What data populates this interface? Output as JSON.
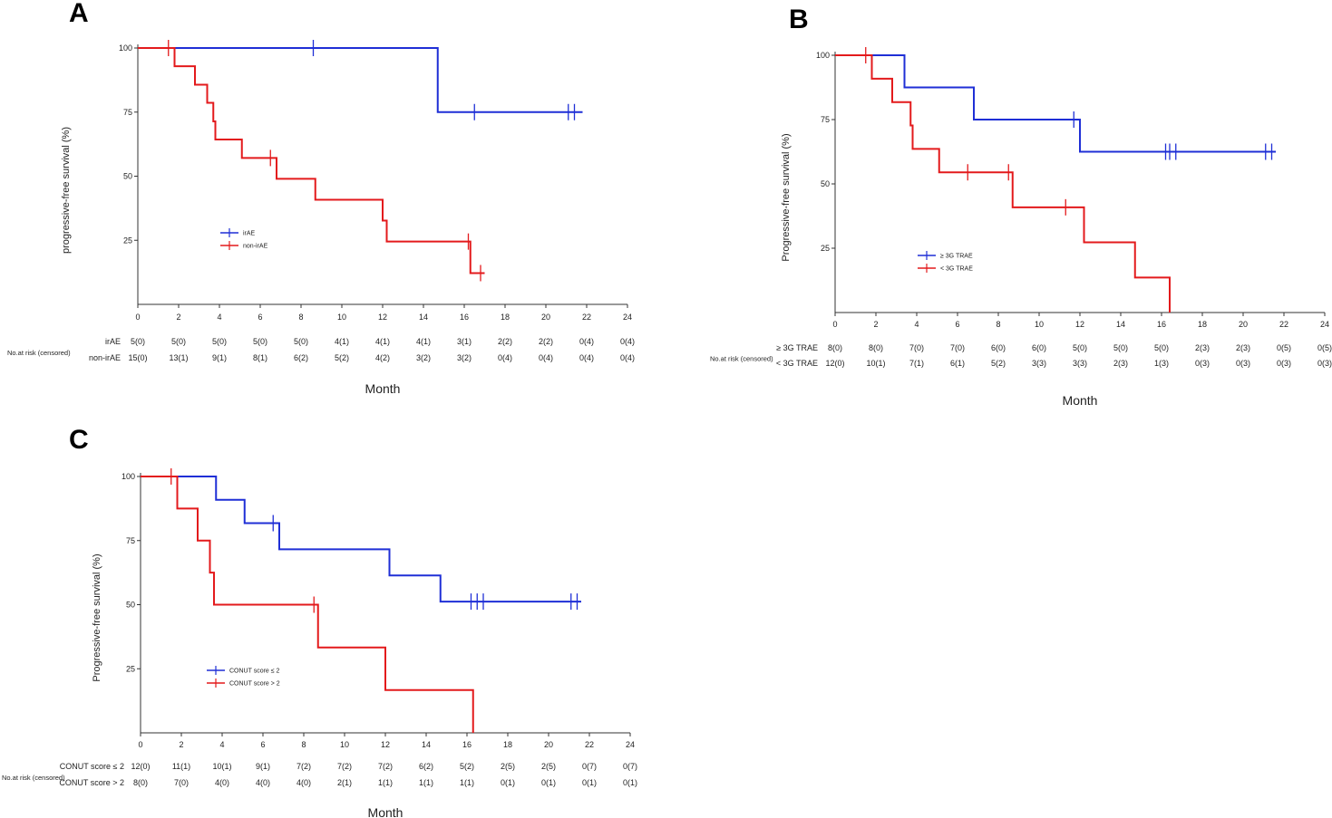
{
  "chart_data": [
    {
      "type": "line",
      "subtype": "kaplan-meier",
      "panel_label": "A",
      "xlabel": "Month",
      "ylabel": "progressive-free survival (%)",
      "xlim": [
        0,
        24
      ],
      "ylim": [
        0,
        100
      ],
      "x_ticks": [
        0,
        2,
        4,
        6,
        8,
        10,
        12,
        14,
        16,
        18,
        20,
        22,
        24
      ],
      "y_ticks": [
        25,
        50,
        75,
        100
      ],
      "series": [
        {
          "name": "irAE",
          "color": "#1f2fd6",
          "steps": [
            [
              0,
              100
            ],
            [
              14.7,
              75
            ],
            [
              21.8,
              75
            ]
          ],
          "censors": [
            [
              8.6,
              100
            ],
            [
              16.5,
              75
            ],
            [
              21.1,
              75
            ],
            [
              21.4,
              75
            ]
          ]
        },
        {
          "name": "non-irAE",
          "color": "#e31a1c",
          "steps": [
            [
              0,
              100
            ],
            [
              1.8,
              92.9
            ],
            [
              2.8,
              85.7
            ],
            [
              3.4,
              78.6
            ],
            [
              3.7,
              71.4
            ],
            [
              3.8,
              64.3
            ],
            [
              5.1,
              57.1
            ],
            [
              6.8,
              49
            ],
            [
              8.7,
              40.8
            ],
            [
              12.0,
              32.7
            ],
            [
              12.2,
              24.5
            ],
            [
              16.3,
              12.2
            ],
            [
              17.0,
              12.2
            ]
          ],
          "censors": [
            [
              1.5,
              100
            ],
            [
              6.5,
              57.1
            ],
            [
              16.2,
              24.5
            ],
            [
              16.8,
              12.2
            ]
          ]
        }
      ],
      "legend": {
        "location": "center-left",
        "entries": [
          "irAE",
          "non-irAE"
        ]
      },
      "risk_table": {
        "header": "No.at risk (censored)",
        "times": [
          0,
          2,
          4,
          6,
          8,
          10,
          12,
          14,
          16,
          18,
          20,
          22,
          24
        ],
        "rows": [
          {
            "label": "irAE",
            "values": [
              "5(0)",
              "5(0)",
              "5(0)",
              "5(0)",
              "5(0)",
              "4(1)",
              "4(1)",
              "4(1)",
              "3(1)",
              "2(2)",
              "2(2)",
              "0(4)",
              "0(4)"
            ]
          },
          {
            "label": "non-irAE",
            "values": [
              "15(0)",
              "13(1)",
              "9(1)",
              "8(1)",
              "6(2)",
              "5(2)",
              "4(2)",
              "3(2)",
              "3(2)",
              "0(4)",
              "0(4)",
              "0(4)",
              "0(4)"
            ]
          }
        ]
      }
    },
    {
      "type": "line",
      "subtype": "kaplan-meier",
      "panel_label": "B",
      "xlabel": "Month",
      "ylabel": "Progressive-free survival (%)",
      "xlim": [
        0,
        24
      ],
      "ylim": [
        0,
        100
      ],
      "x_ticks": [
        0,
        2,
        4,
        6,
        8,
        10,
        12,
        14,
        16,
        18,
        20,
        22,
        24
      ],
      "y_ticks": [
        25,
        50,
        75,
        100
      ],
      "series": [
        {
          "name": "≥ 3G TRAE",
          "color": "#1f2fd6",
          "steps": [
            [
              0,
              100
            ],
            [
              3.4,
              87.5
            ],
            [
              6.8,
              75
            ],
            [
              12.0,
              62.5
            ],
            [
              21.6,
              62.5
            ]
          ],
          "censors": [
            [
              11.7,
              75
            ],
            [
              16.2,
              62.5
            ],
            [
              16.4,
              62.5
            ],
            [
              16.7,
              62.5
            ],
            [
              21.1,
              62.5
            ],
            [
              21.4,
              62.5
            ]
          ]
        },
        {
          "name": "< 3G TRAE",
          "color": "#e31a1c",
          "steps": [
            [
              0,
              100
            ],
            [
              1.8,
              90.9
            ],
            [
              2.8,
              81.8
            ],
            [
              3.7,
              72.7
            ],
            [
              3.8,
              63.6
            ],
            [
              5.1,
              54.5
            ],
            [
              8.7,
              40.9
            ],
            [
              12.2,
              27.3
            ],
            [
              14.7,
              13.6
            ],
            [
              16.4,
              0
            ]
          ],
          "censors": [
            [
              1.5,
              100
            ],
            [
              6.5,
              54.5
            ],
            [
              8.5,
              54.5
            ],
            [
              11.3,
              40.9
            ]
          ]
        }
      ],
      "legend": {
        "location": "center-left",
        "entries": [
          "≥ 3G TRAE",
          "< 3G TRAE"
        ]
      },
      "risk_table": {
        "header": "No.at risk (censored)",
        "times": [
          0,
          2,
          4,
          6,
          8,
          10,
          12,
          14,
          16,
          18,
          20,
          22,
          24
        ],
        "rows": [
          {
            "label": "≥ 3G TRAE",
            "values": [
              "8(0)",
              "8(0)",
              "7(0)",
              "7(0)",
              "6(0)",
              "6(0)",
              "5(0)",
              "5(0)",
              "5(0)",
              "2(3)",
              "2(3)",
              "0(5)",
              "0(5)"
            ]
          },
          {
            "label": "< 3G TRAE",
            "values": [
              "12(0)",
              "10(1)",
              "7(1)",
              "6(1)",
              "5(2)",
              "3(3)",
              "3(3)",
              "2(3)",
              "1(3)",
              "0(3)",
              "0(3)",
              "0(3)",
              "0(3)"
            ]
          }
        ]
      }
    },
    {
      "type": "line",
      "subtype": "kaplan-meier",
      "panel_label": "C",
      "xlabel": "Month",
      "ylabel": "Progressive-free survival (%)",
      "xlim": [
        0,
        24
      ],
      "ylim": [
        0,
        100
      ],
      "x_ticks": [
        0,
        2,
        4,
        6,
        8,
        10,
        12,
        14,
        16,
        18,
        20,
        22,
        24
      ],
      "y_ticks": [
        25,
        50,
        75,
        100
      ],
      "series": [
        {
          "name": "CONUT score ≤ 2",
          "color": "#1f2fd6",
          "steps": [
            [
              0,
              100
            ],
            [
              3.7,
              90.9
            ],
            [
              5.1,
              81.8
            ],
            [
              6.8,
              71.6
            ],
            [
              12.2,
              61.4
            ],
            [
              14.7,
              51.2
            ],
            [
              21.6,
              51.2
            ]
          ],
          "censors": [
            [
              6.5,
              81.8
            ],
            [
              16.2,
              51.2
            ],
            [
              16.5,
              51.2
            ],
            [
              16.8,
              51.2
            ],
            [
              21.1,
              51.2
            ],
            [
              21.4,
              51.2
            ]
          ]
        },
        {
          "name": "CONUT score > 2",
          "color": "#e31a1c",
          "steps": [
            [
              0,
              100
            ],
            [
              1.8,
              87.5
            ],
            [
              2.8,
              75
            ],
            [
              3.4,
              62.5
            ],
            [
              3.6,
              50
            ],
            [
              8.7,
              33.3
            ],
            [
              12.0,
              16.7
            ],
            [
              16.3,
              0
            ]
          ],
          "censors": [
            [
              1.5,
              100
            ],
            [
              8.5,
              50
            ]
          ]
        }
      ],
      "legend": {
        "location": "center-left",
        "entries": [
          "CONUT score ≤ 2",
          "CONUT score > 2"
        ]
      },
      "risk_table": {
        "header": "No.at risk (censored)",
        "times": [
          0,
          2,
          4,
          6,
          8,
          10,
          12,
          14,
          16,
          18,
          20,
          22,
          24
        ],
        "rows": [
          {
            "label": "CONUT score ≤ 2",
            "values": [
              "12(0)",
              "11(1)",
              "10(1)",
              "9(1)",
              "7(2)",
              "7(2)",
              "7(2)",
              "6(2)",
              "5(2)",
              "2(5)",
              "2(5)",
              "0(7)",
              "0(7)"
            ]
          },
          {
            "label": "CONUT score > 2",
            "values": [
              "8(0)",
              "7(0)",
              "4(0)",
              "4(0)",
              "4(0)",
              "2(1)",
              "1(1)",
              "1(1)",
              "1(1)",
              "0(1)",
              "0(1)",
              "0(1)",
              "0(1)"
            ]
          }
        ]
      }
    }
  ]
}
